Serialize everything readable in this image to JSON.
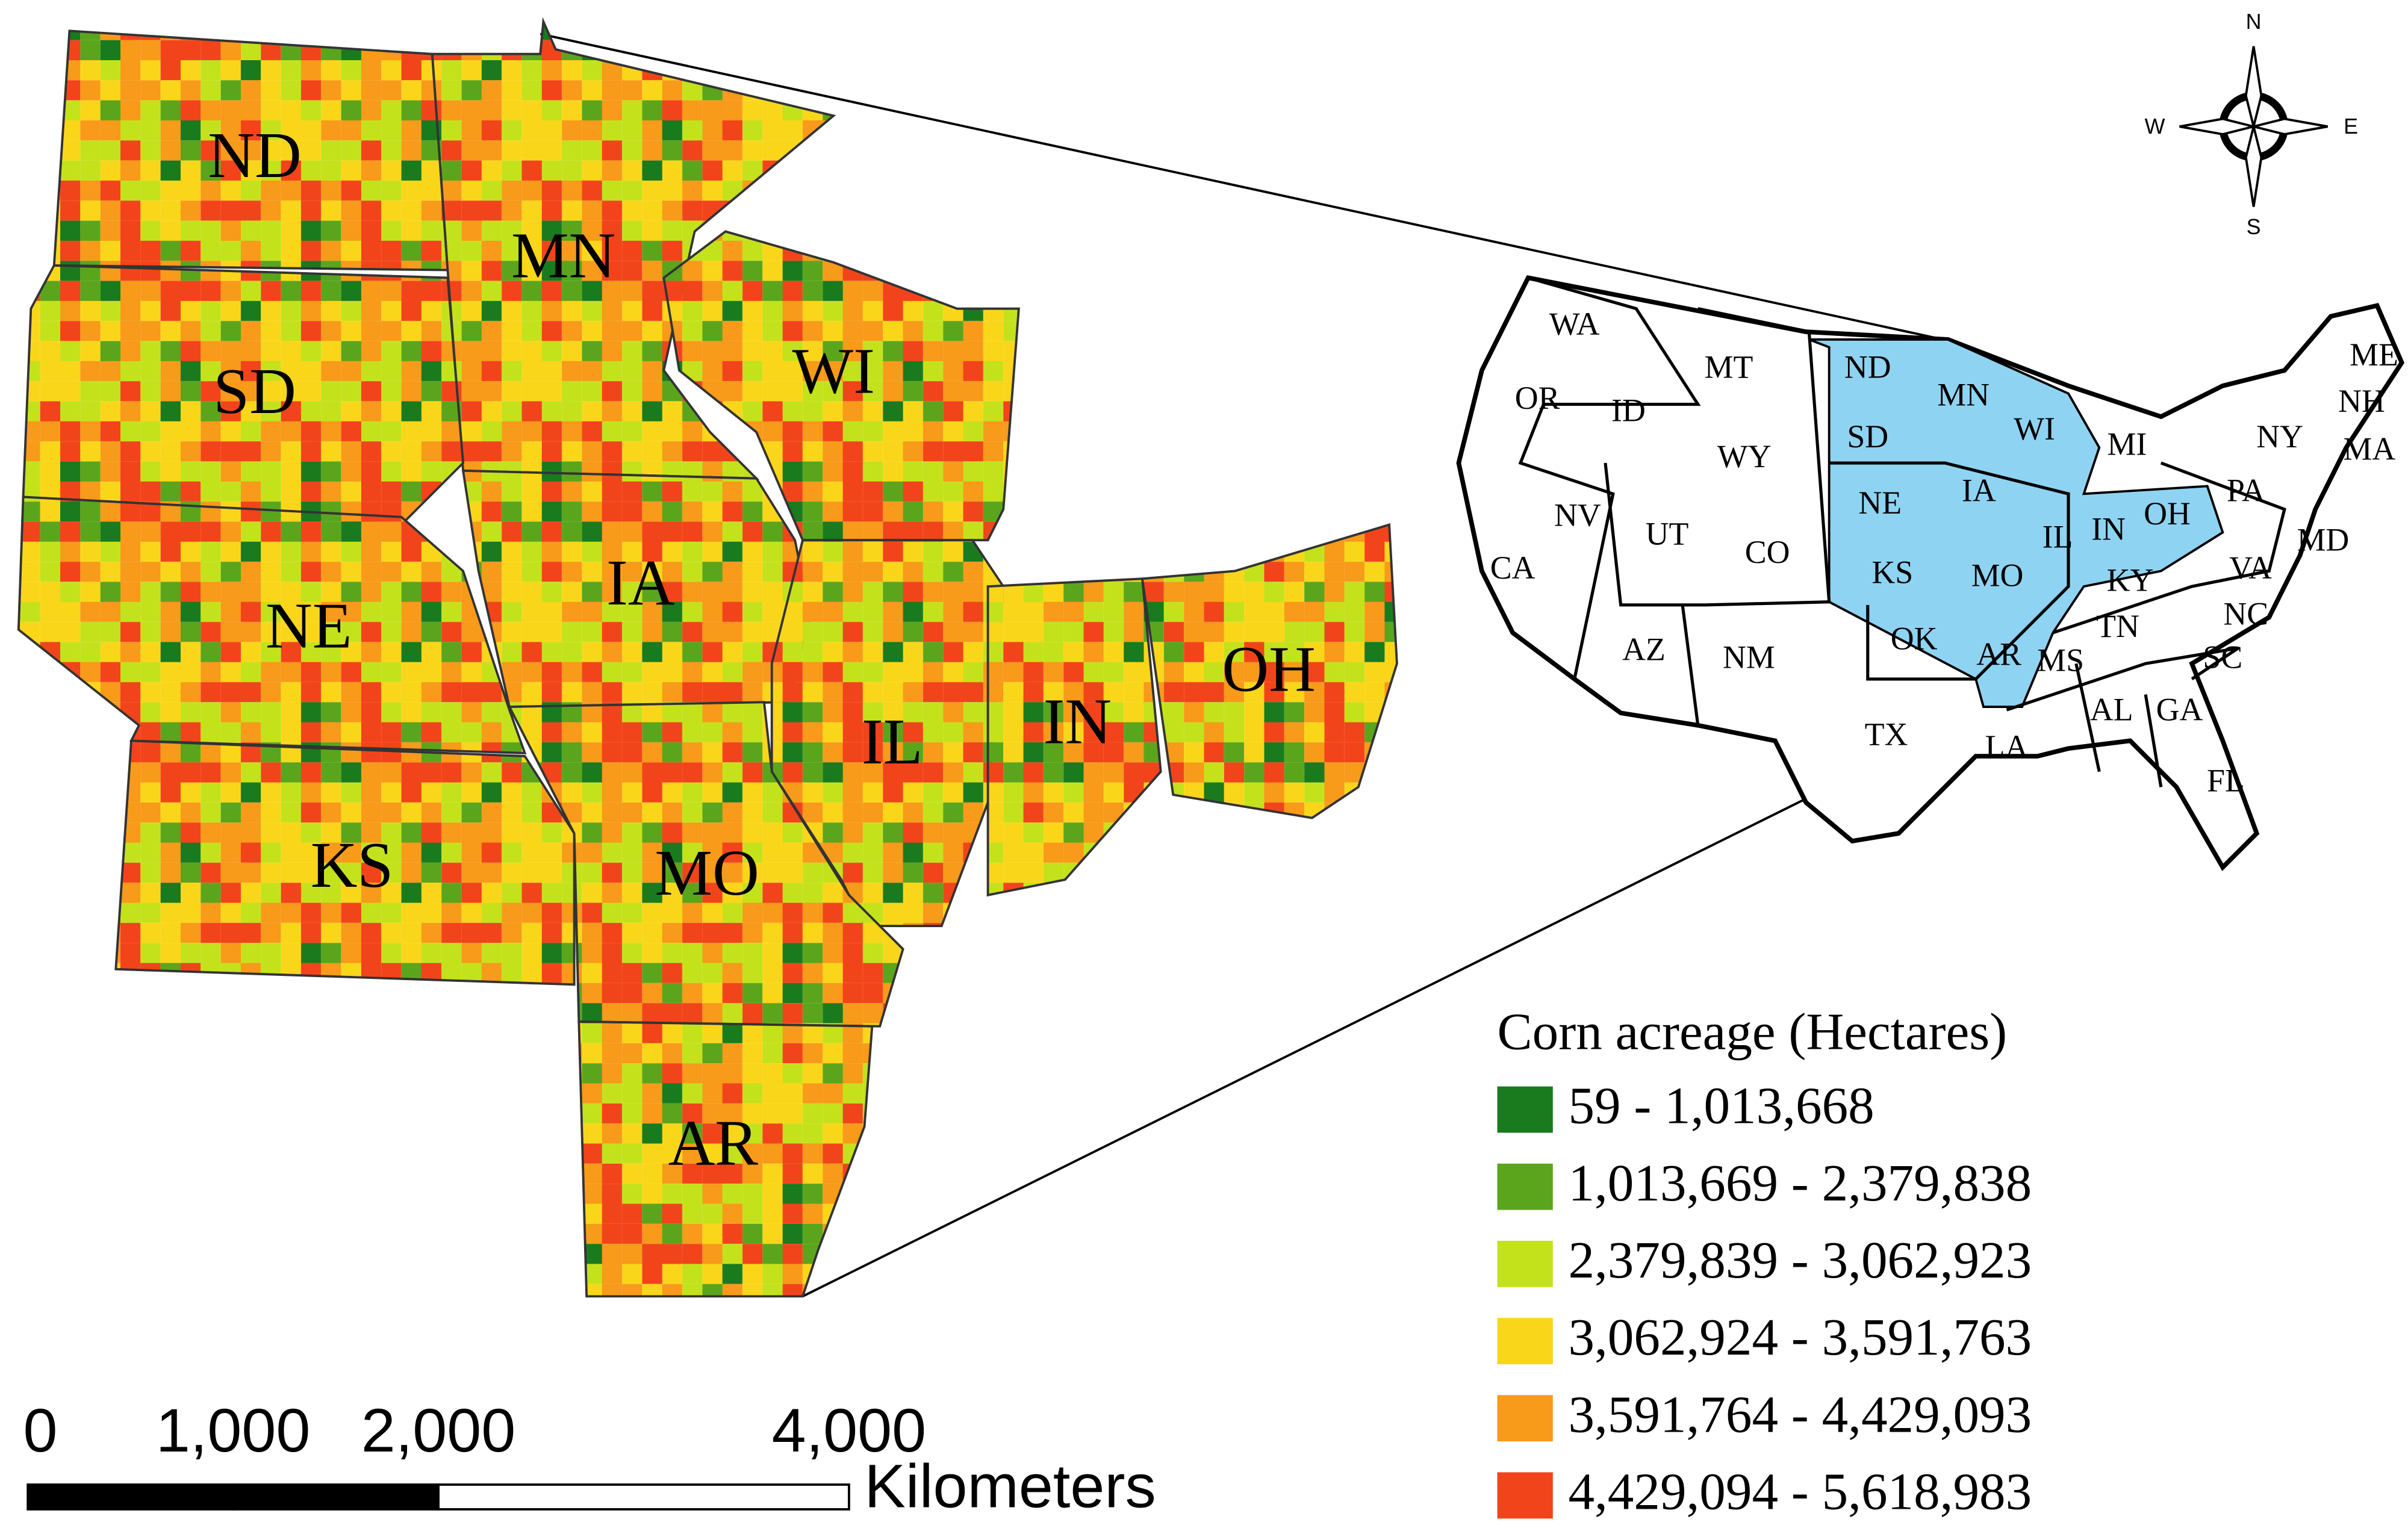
{
  "main_map": {
    "state_labels": [
      "ND",
      "MN",
      "SD",
      "WI",
      "IA",
      "NE",
      "IL",
      "IN",
      "OH",
      "KS",
      "MO",
      "AR"
    ]
  },
  "inset_map": {
    "state_labels": [
      "WA",
      "MT",
      "ND",
      "MN",
      "WI",
      "OR",
      "ID",
      "WY",
      "SD",
      "MI",
      "NY",
      "PA",
      "NE",
      "IA",
      "NV",
      "UT",
      "CO",
      "IL",
      "IN",
      "OH",
      "CA",
      "KS",
      "MO",
      "KY",
      "VA",
      "AZ",
      "NM",
      "OK",
      "TN",
      "NC",
      "AR",
      "MS",
      "SC",
      "TX",
      "AL",
      "GA",
      "LA",
      "FL",
      "MD",
      "MA",
      "NH",
      "ME"
    ],
    "highlight_color": "#8fd3f2"
  },
  "legend": {
    "title": "Corn acreage (Hectares)",
    "classes": [
      {
        "label": "59 - 1,013,668",
        "color": "#1a7a1e"
      },
      {
        "label": "1,013,669 - 2,379,838",
        "color": "#5ba51d"
      },
      {
        "label": "2,379,839 - 3,062,923",
        "color": "#c4e21c"
      },
      {
        "label": "3,062,924 - 3,591,763",
        "color": "#fad61a"
      },
      {
        "label": "3,591,764 - 4,429,093",
        "color": "#f89a1a"
      },
      {
        "label": "4,429,094 - 5,618,983",
        "color": "#f2441b"
      }
    ]
  },
  "scale_bar": {
    "unit": "Kilometers",
    "ticks": [
      0,
      {
        "value": 1000,
        "label": "1,000"
      },
      {
        "value": 2000,
        "label": "2,000"
      },
      {
        "value": 4000,
        "label": "4,000"
      }
    ]
  },
  "compass": {
    "north": "N",
    "south": "S",
    "east": "E",
    "west": "W"
  }
}
